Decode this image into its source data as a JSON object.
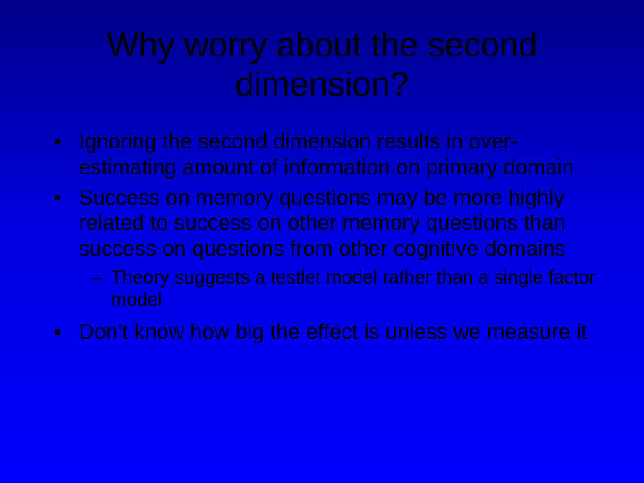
{
  "slide": {
    "background_gradient": {
      "top": "#000088",
      "mid": "#0000dd",
      "bottom": "#0000ff"
    },
    "text_color": "#000000",
    "title": "Why worry about the second dimension?",
    "title_fontsize": 38,
    "body_fontsize": 24,
    "sub_fontsize": 21,
    "font_family": "Arial",
    "bullets": {
      "b1": "Ignoring the second dimension results in over-estimating amount of information on primary domain",
      "b2": "Success on memory questions may be more highly related to success on other memory questions than success on questions from other cognitive domains",
      "b2_sub1": "Theory suggests a testlet model rather than a single factor model",
      "b3": "Don't know how big the effect is unless we measure it"
    }
  }
}
